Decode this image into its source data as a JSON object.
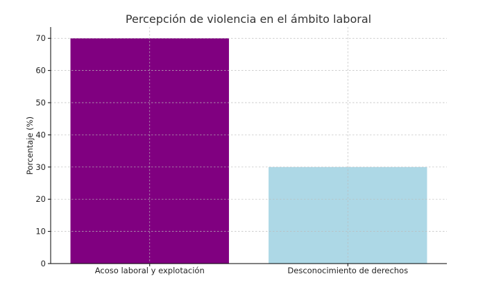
{
  "chart_data": {
    "type": "bar",
    "title": "Percepción de violencia en el ámbito laboral",
    "xlabel": "",
    "ylabel": "Porcentaje (%)",
    "categories": [
      "Acoso laboral y explotación",
      "Desconocimiento de derechos"
    ],
    "values": [
      70,
      30
    ],
    "colors": [
      "#800080",
      "#add8e6"
    ],
    "ylim": [
      0,
      73.5
    ],
    "yticks": [
      0,
      10,
      20,
      30,
      40,
      50,
      60,
      70
    ],
    "grid": true
  }
}
